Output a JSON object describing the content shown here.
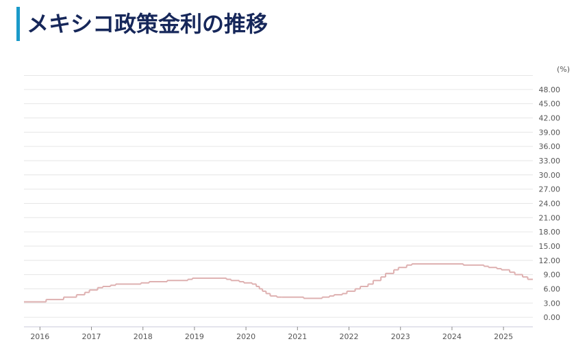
{
  "title": "メキシコ政策金利の推移",
  "chart_data": {
    "type": "step",
    "unit": "(%)",
    "series": [
      {
        "color": "#deb0b0",
        "x": [
          2015.69,
          2016.12,
          2016.46,
          2016.71,
          2016.87,
          2016.96,
          2017.12,
          2017.22,
          2017.37,
          2017.47,
          2017.96,
          2018.12,
          2018.47,
          2018.87,
          2018.96,
          2019.62,
          2019.71,
          2019.87,
          2019.96,
          2020.12,
          2020.2,
          2020.26,
          2020.32,
          2020.39,
          2020.47,
          2020.6,
          2020.7,
          2021.12,
          2021.48,
          2021.62,
          2021.71,
          2021.87,
          2021.96,
          2022.12,
          2022.22,
          2022.37,
          2022.47,
          2022.62,
          2022.71,
          2022.87,
          2022.96,
          2023.12,
          2023.22,
          2024.22,
          2024.62,
          2024.71,
          2024.87,
          2024.96,
          2025.12,
          2025.22,
          2025.37,
          2025.47
        ],
        "values": [
          3.25,
          3.75,
          4.25,
          4.75,
          5.25,
          5.75,
          6.25,
          6.5,
          6.75,
          7.0,
          7.25,
          7.5,
          7.75,
          8.0,
          8.25,
          8.0,
          7.75,
          7.5,
          7.25,
          7.0,
          6.5,
          6.0,
          5.5,
          5.0,
          4.5,
          4.25,
          4.25,
          4.0,
          4.25,
          4.5,
          4.75,
          5.0,
          5.5,
          6.0,
          6.5,
          7.0,
          7.75,
          8.5,
          9.25,
          10.0,
          10.5,
          11.0,
          11.25,
          11.0,
          10.75,
          10.5,
          10.25,
          10.0,
          9.5,
          9.0,
          8.5,
          8.0
        ]
      }
    ],
    "xlim": [
      2015.69,
      2025.57
    ],
    "xticks": [
      2016,
      2017,
      2018,
      2019,
      2020,
      2021,
      2022,
      2023,
      2024,
      2025
    ],
    "ylim": [
      -2,
      51
    ],
    "yticks": [
      {
        "value": 0,
        "label": "0.00"
      },
      {
        "value": 3,
        "label": "3.00"
      },
      {
        "value": 6,
        "label": "6.00"
      },
      {
        "value": 9,
        "label": "9.00"
      },
      {
        "value": 12,
        "label": "12.00"
      },
      {
        "value": 15,
        "label": "15.00"
      },
      {
        "value": 18,
        "label": "18.00"
      },
      {
        "value": 21,
        "label": "21.00"
      },
      {
        "value": 24,
        "label": "24.00"
      },
      {
        "value": 27,
        "label": "27.00"
      },
      {
        "value": 30,
        "label": "30.00"
      },
      {
        "value": 33,
        "label": "33.00"
      },
      {
        "value": 36,
        "label": "36.00"
      },
      {
        "value": 39,
        "label": "39.00"
      },
      {
        "value": 42,
        "label": "42.00"
      },
      {
        "value": 45,
        "label": "45.00"
      },
      {
        "value": 48,
        "label": "48.00"
      }
    ],
    "grid": true
  }
}
